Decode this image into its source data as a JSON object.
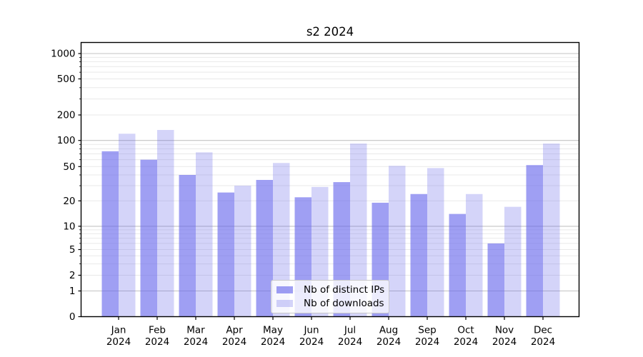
{
  "chart_data": {
    "type": "bar",
    "title": "s2 2024",
    "categories": [
      "Jan 2024",
      "Feb 2024",
      "Mar 2024",
      "Apr 2024",
      "May 2024",
      "Jun 2024",
      "Jul 2024",
      "Aug 2024",
      "Sep 2024",
      "Oct 2024",
      "Nov 2024",
      "Dec 2024"
    ],
    "series": [
      {
        "name": "Nb of distinct IPs",
        "values": [
          75,
          60,
          40,
          25,
          35,
          22,
          33,
          19,
          24,
          14,
          6,
          52
        ]
      },
      {
        "name": "Nb of downloads",
        "values": [
          120,
          133,
          73,
          30,
          55,
          29,
          92,
          51,
          48,
          24,
          17,
          92
        ]
      }
    ],
    "yticks": [
      0,
      1,
      2,
      5,
      10,
      20,
      50,
      100,
      200,
      500,
      1000
    ],
    "ylabel": "",
    "xlabel": "",
    "yscale": "asinh (log-like above 1, linear 0-1)",
    "ylim": [
      0,
      1370
    ],
    "grid": true,
    "legend_position": "lower center"
  },
  "colors": {
    "bar_base": "#6464eb",
    "series_fills": [
      "rgba(100,100,235,0.62)",
      "rgba(100,100,235,0.28)"
    ],
    "major_grid": "#c3c3c3",
    "minor_grid": "#e9e9e9",
    "spine": "#000000",
    "text": "#000000"
  }
}
